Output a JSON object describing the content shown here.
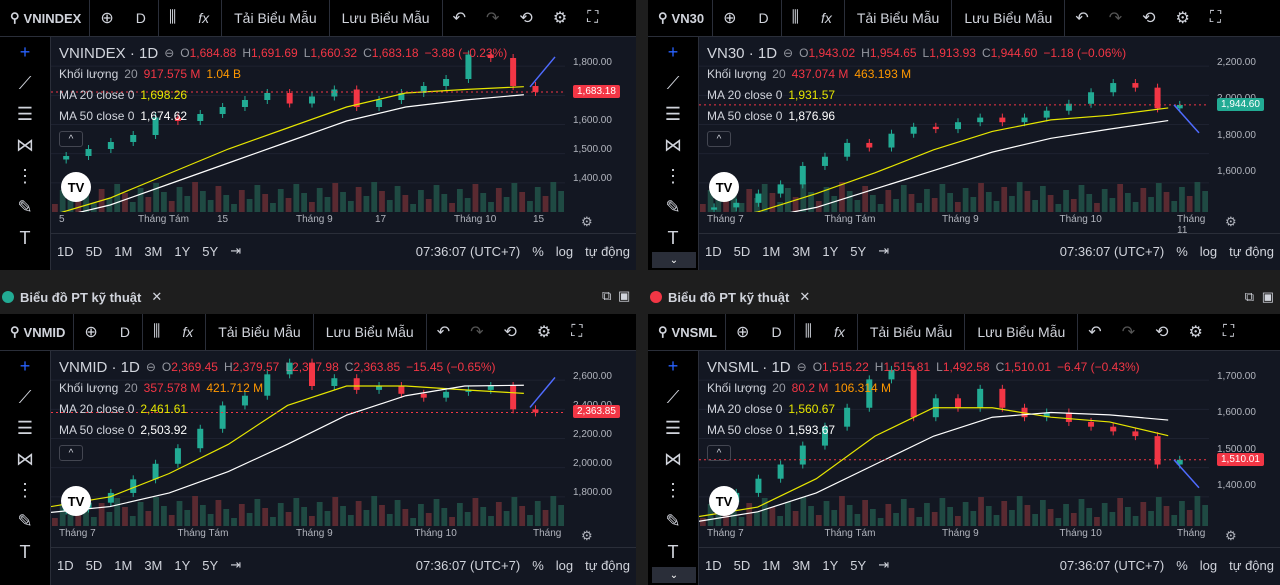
{
  "toolbar_labels": {
    "interval": "D",
    "fx": "fx",
    "load_template": "Tải Biểu Mẫu",
    "save_template": "Lưu Biểu Mẫu"
  },
  "bottom_labels": {
    "ranges": [
      "1D",
      "5D",
      "1M",
      "3M",
      "1Y",
      "5Y"
    ],
    "time": "07:36:07 (UTC+7)",
    "pct": "%",
    "log": "log",
    "auto": "tự động"
  },
  "tabs": [
    {
      "title": "Biểu đồ PT kỹ thuật",
      "close": "✕",
      "dot_color": "#22ab94"
    },
    {
      "title": "Biểu đồ PT kỹ thuật",
      "close": "✕",
      "dot_color": "#f23645"
    }
  ],
  "panels": [
    {
      "symbol": "VNINDEX",
      "title": "VNINDEX · 1D",
      "ohlc": {
        "o": "1,684.88",
        "h": "1,691.69",
        "l": "1,660.32",
        "c": "1,683.18",
        "chg": "−3.88 (−0.23%)",
        "direction": "down"
      },
      "volume": {
        "label": "Khối lượng",
        "period": "20",
        "v1": "917.575 M",
        "v2": "1.04 B"
      },
      "ma20": {
        "label": "MA 20 close 0",
        "value": "1,698.26"
      },
      "ma50": {
        "label": "MA 50 close 0",
        "value": "1,674.62"
      },
      "price_ticks": [
        "1,800.00",
        "1,700.00",
        "1,600.00",
        "1,500.00",
        "1,400.00"
      ],
      "last_price": "1,683.18",
      "time_ticks": [
        "5",
        "Tháng Tám",
        "15",
        "Tháng 9",
        "17",
        "Tháng 10",
        "15"
      ],
      "chart_data": {
        "type": "candlestick",
        "ylim": [
          1340,
          1840
        ],
        "ma20": [
          1330,
          1380,
          1450,
          1520,
          1580,
          1640,
          1680,
          1690,
          1698
        ],
        "ma50": [
          1320,
          1360,
          1420,
          1480,
          1540,
          1600,
          1640,
          1660,
          1675
        ],
        "closes": [
          1500,
          1520,
          1540,
          1560,
          1610,
          1600,
          1620,
          1640,
          1660,
          1680,
          1650,
          1670,
          1690,
          1640,
          1660,
          1680,
          1700,
          1720,
          1790,
          1780,
          1700,
          1683
        ]
      }
    },
    {
      "symbol": "VN30",
      "title": "VN30 · 1D",
      "ohlc": {
        "o": "1,943.02",
        "h": "1,954.65",
        "l": "1,913.93",
        "c": "1,944.60",
        "chg": "−1.18 (−0.06%)",
        "direction": "down"
      },
      "volume": {
        "label": "Khối lượng",
        "period": "20",
        "v1": "437.074 M",
        "v2": "463.193 M"
      },
      "ma20": {
        "label": "MA 20 close 0",
        "value": "1,931.57"
      },
      "ma50": {
        "label": "MA 50 close 0",
        "value": "1,876.96"
      },
      "price_ticks": [
        "2,200.00",
        "2,000.00",
        "1,800.00",
        "1,600.00"
      ],
      "last_price": "1,944.60",
      "time_ticks": [
        "Tháng 7",
        "Tháng Tám",
        "Tháng 9",
        "Tháng 10",
        "Tháng 11"
      ],
      "chart_data": {
        "type": "candlestick",
        "ylim": [
          1480,
          2240
        ],
        "ma20": [
          1440,
          1480,
          1560,
          1650,
          1750,
          1830,
          1880,
          1900,
          1932
        ],
        "ma50": [
          1420,
          1450,
          1500,
          1580,
          1660,
          1740,
          1800,
          1840,
          1877
        ],
        "closes": [
          1500,
          1520,
          1560,
          1600,
          1680,
          1720,
          1780,
          1760,
          1820,
          1850,
          1840,
          1870,
          1890,
          1870,
          1890,
          1920,
          1950,
          2000,
          2040,
          2020,
          1930,
          1945
        ]
      }
    },
    {
      "symbol": "VNMID",
      "title": "VNMID · 1D",
      "ohlc": {
        "o": "2,369.45",
        "h": "2,379.57",
        "l": "2,327.98",
        "c": "2,363.85",
        "chg": "−15.45 (−0.65%)",
        "direction": "down"
      },
      "volume": {
        "label": "Khối lượng",
        "period": "20",
        "v1": "357.578 M",
        "v2": "421.712 M"
      },
      "ma20": {
        "label": "MA 20 close 0",
        "value": "2,461.61"
      },
      "ma50": {
        "label": "MA 50 close 0",
        "value": "2,503.92"
      },
      "price_ticks": [
        "2,600.00",
        "2,400.00",
        "2,200.00",
        "2,000.00",
        "1,800.00"
      ],
      "last_price": "2,363.85",
      "time_ticks": [
        "Tháng 7",
        "Tháng Tám",
        "Tháng 9",
        "Tháng 10",
        "Tháng"
      ],
      "chart_data": {
        "type": "candlestick",
        "ylim": [
          1780,
          2680
        ],
        "ma20": [
          1880,
          1930,
          2050,
          2200,
          2400,
          2500,
          2500,
          2480,
          2462
        ],
        "ma50": [
          1850,
          1880,
          1950,
          2060,
          2200,
          2350,
          2450,
          2500,
          2504
        ],
        "closes": [
          1870,
          1900,
          1950,
          2020,
          2100,
          2180,
          2280,
          2400,
          2450,
          2560,
          2620,
          2500,
          2540,
          2480,
          2500,
          2460,
          2440,
          2470,
          2480,
          2500,
          2380,
          2364
        ]
      }
    },
    {
      "symbol": "VNSML",
      "title": "VNSML · 1D",
      "ohlc": {
        "o": "1,515.22",
        "h": "1,515.81",
        "l": "1,492.58",
        "c": "1,510.01",
        "chg": "−6.47 (−0.43%)",
        "direction": "down"
      },
      "volume": {
        "label": "Khối lượng",
        "period": "20",
        "v1": "80.2 M",
        "v2": "106.314 M"
      },
      "ma20": {
        "label": "MA 20 close 0",
        "value": "1,560.67"
      },
      "ma50": {
        "label": "MA 50 close 0",
        "value": "1,593.67"
      },
      "price_ticks": [
        "1,700.00",
        "1,600.00",
        "1,500.00",
        "1,400.00"
      ],
      "last_price": "1,510.01",
      "time_ticks": [
        "Tháng 7",
        "Tháng Tám",
        "Tháng 9",
        "Tháng 10",
        "Tháng"
      ],
      "chart_data": {
        "type": "candlestick",
        "ylim": [
          1370,
          1740
        ],
        "ma20": [
          1390,
          1410,
          1470,
          1560,
          1620,
          1620,
          1600,
          1590,
          1561
        ],
        "ma50": [
          1380,
          1400,
          1440,
          1500,
          1560,
          1600,
          1610,
          1605,
          1594
        ],
        "closes": [
          1420,
          1440,
          1470,
          1500,
          1540,
          1580,
          1620,
          1680,
          1700,
          1600,
          1640,
          1620,
          1660,
          1620,
          1600,
          1610,
          1590,
          1580,
          1570,
          1560,
          1500,
          1510
        ]
      }
    }
  ]
}
